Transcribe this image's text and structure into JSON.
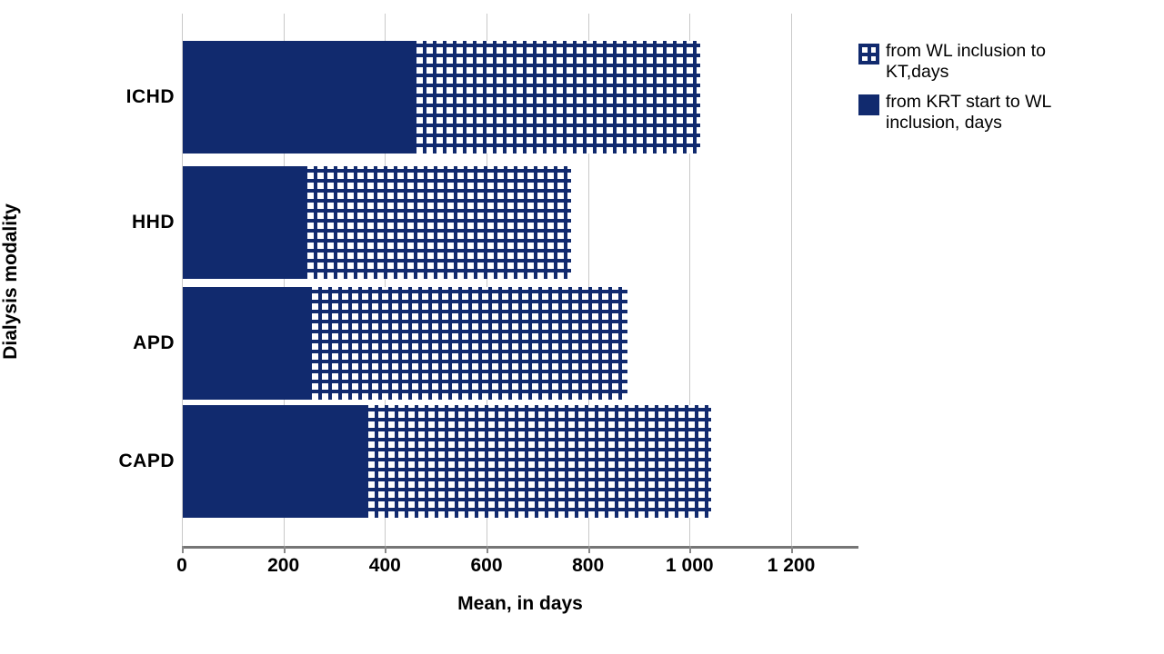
{
  "chart_data": {
    "type": "bar",
    "orientation": "horizontal",
    "stacked": true,
    "title": "",
    "xlabel": "Mean, in days",
    "ylabel": "Dialysis modality",
    "categories": [
      "ICHD",
      "HHD",
      "APD",
      "CAPD"
    ],
    "series": [
      {
        "name": "from KRT start to WL inclusion, days",
        "style": "solid",
        "values": [
          460,
          245,
          255,
          365
        ]
      },
      {
        "name": "from WL inclusion to KT,days",
        "style": "checkered",
        "values": [
          560,
          520,
          620,
          675
        ]
      }
    ],
    "totals": [
      1020,
      765,
      875,
      1040
    ],
    "xlim": [
      0,
      1332
    ],
    "xticks": [
      0,
      200,
      400,
      600,
      800,
      1000,
      1200
    ],
    "xtick_labels": [
      "0",
      "200",
      "400",
      "600",
      "800",
      "1 000",
      "1 200"
    ],
    "grid": true,
    "legend_position": "top-right",
    "colors": {
      "bar_navy": "#112A6E",
      "pattern_background": "#FFFFFF",
      "gridline": "#C9C9C9",
      "axis_line": "#767676",
      "text": "#000000",
      "background": "#FFFFFF"
    }
  },
  "legend": {
    "items": [
      {
        "label": "from WL inclusion to KT,days",
        "swatch": "checkered-swatch-icon",
        "style": "checkered"
      },
      {
        "label": "from KRT start to WL inclusion, days",
        "swatch": "solid-swatch-icon",
        "style": "solid"
      }
    ]
  }
}
